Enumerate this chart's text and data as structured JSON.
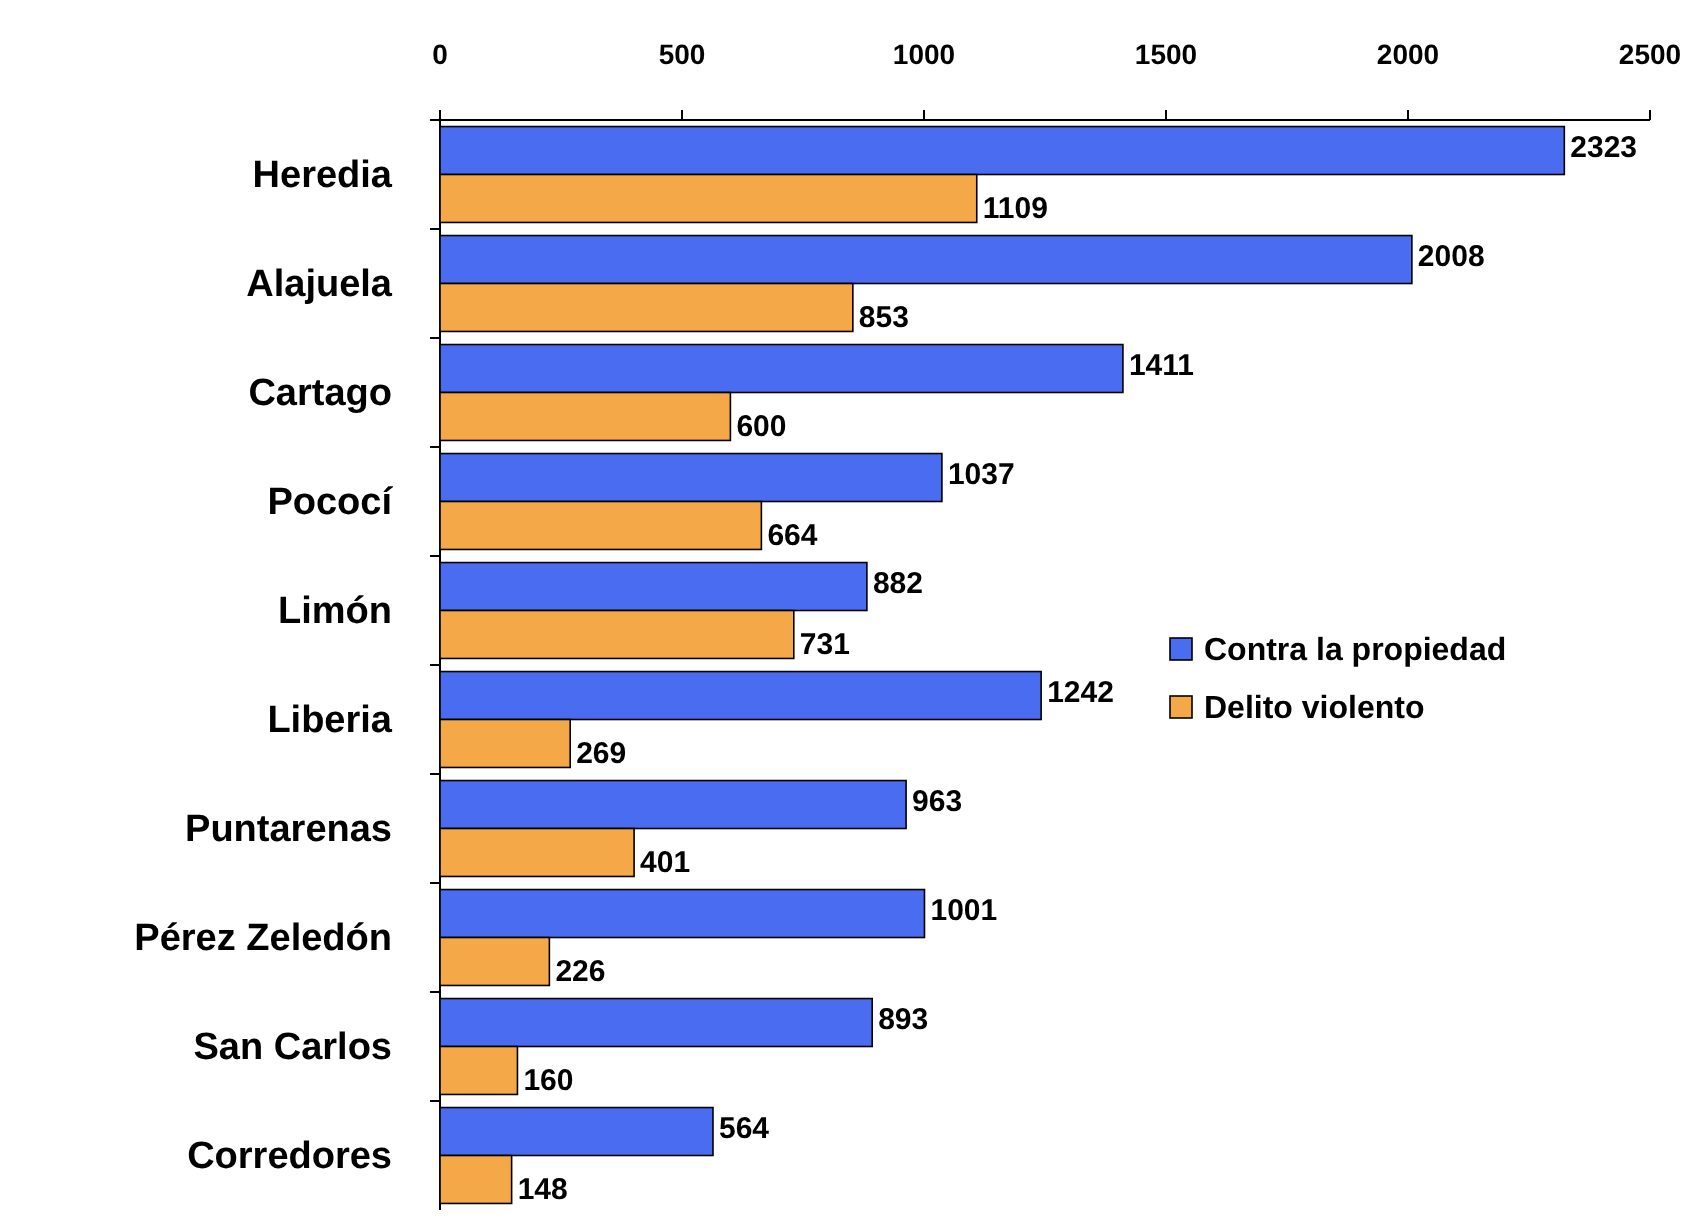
{
  "chart_data": {
    "type": "bar",
    "orientation": "horizontal",
    "categories": [
      "Heredia",
      "Alajuela",
      "Cartago",
      "Pococí",
      "Limón",
      "Liberia",
      "Puntarenas",
      "Pérez Zeledón",
      "San Carlos",
      "Corredores"
    ],
    "series": [
      {
        "name": "Contra la propiedad",
        "color": "#4a6cf0",
        "values": [
          2323,
          2008,
          1411,
          1037,
          882,
          1242,
          963,
          1001,
          893,
          564
        ]
      },
      {
        "name": "Delito violento",
        "color": "#f5a848",
        "values": [
          1109,
          853,
          600,
          664,
          731,
          269,
          401,
          226,
          160,
          148
        ]
      }
    ],
    "xlim": [
      0,
      2500
    ],
    "xticks": [
      0,
      500,
      1000,
      1500,
      2000,
      2500
    ],
    "data_labels": true,
    "legend": "right",
    "grid": false
  }
}
